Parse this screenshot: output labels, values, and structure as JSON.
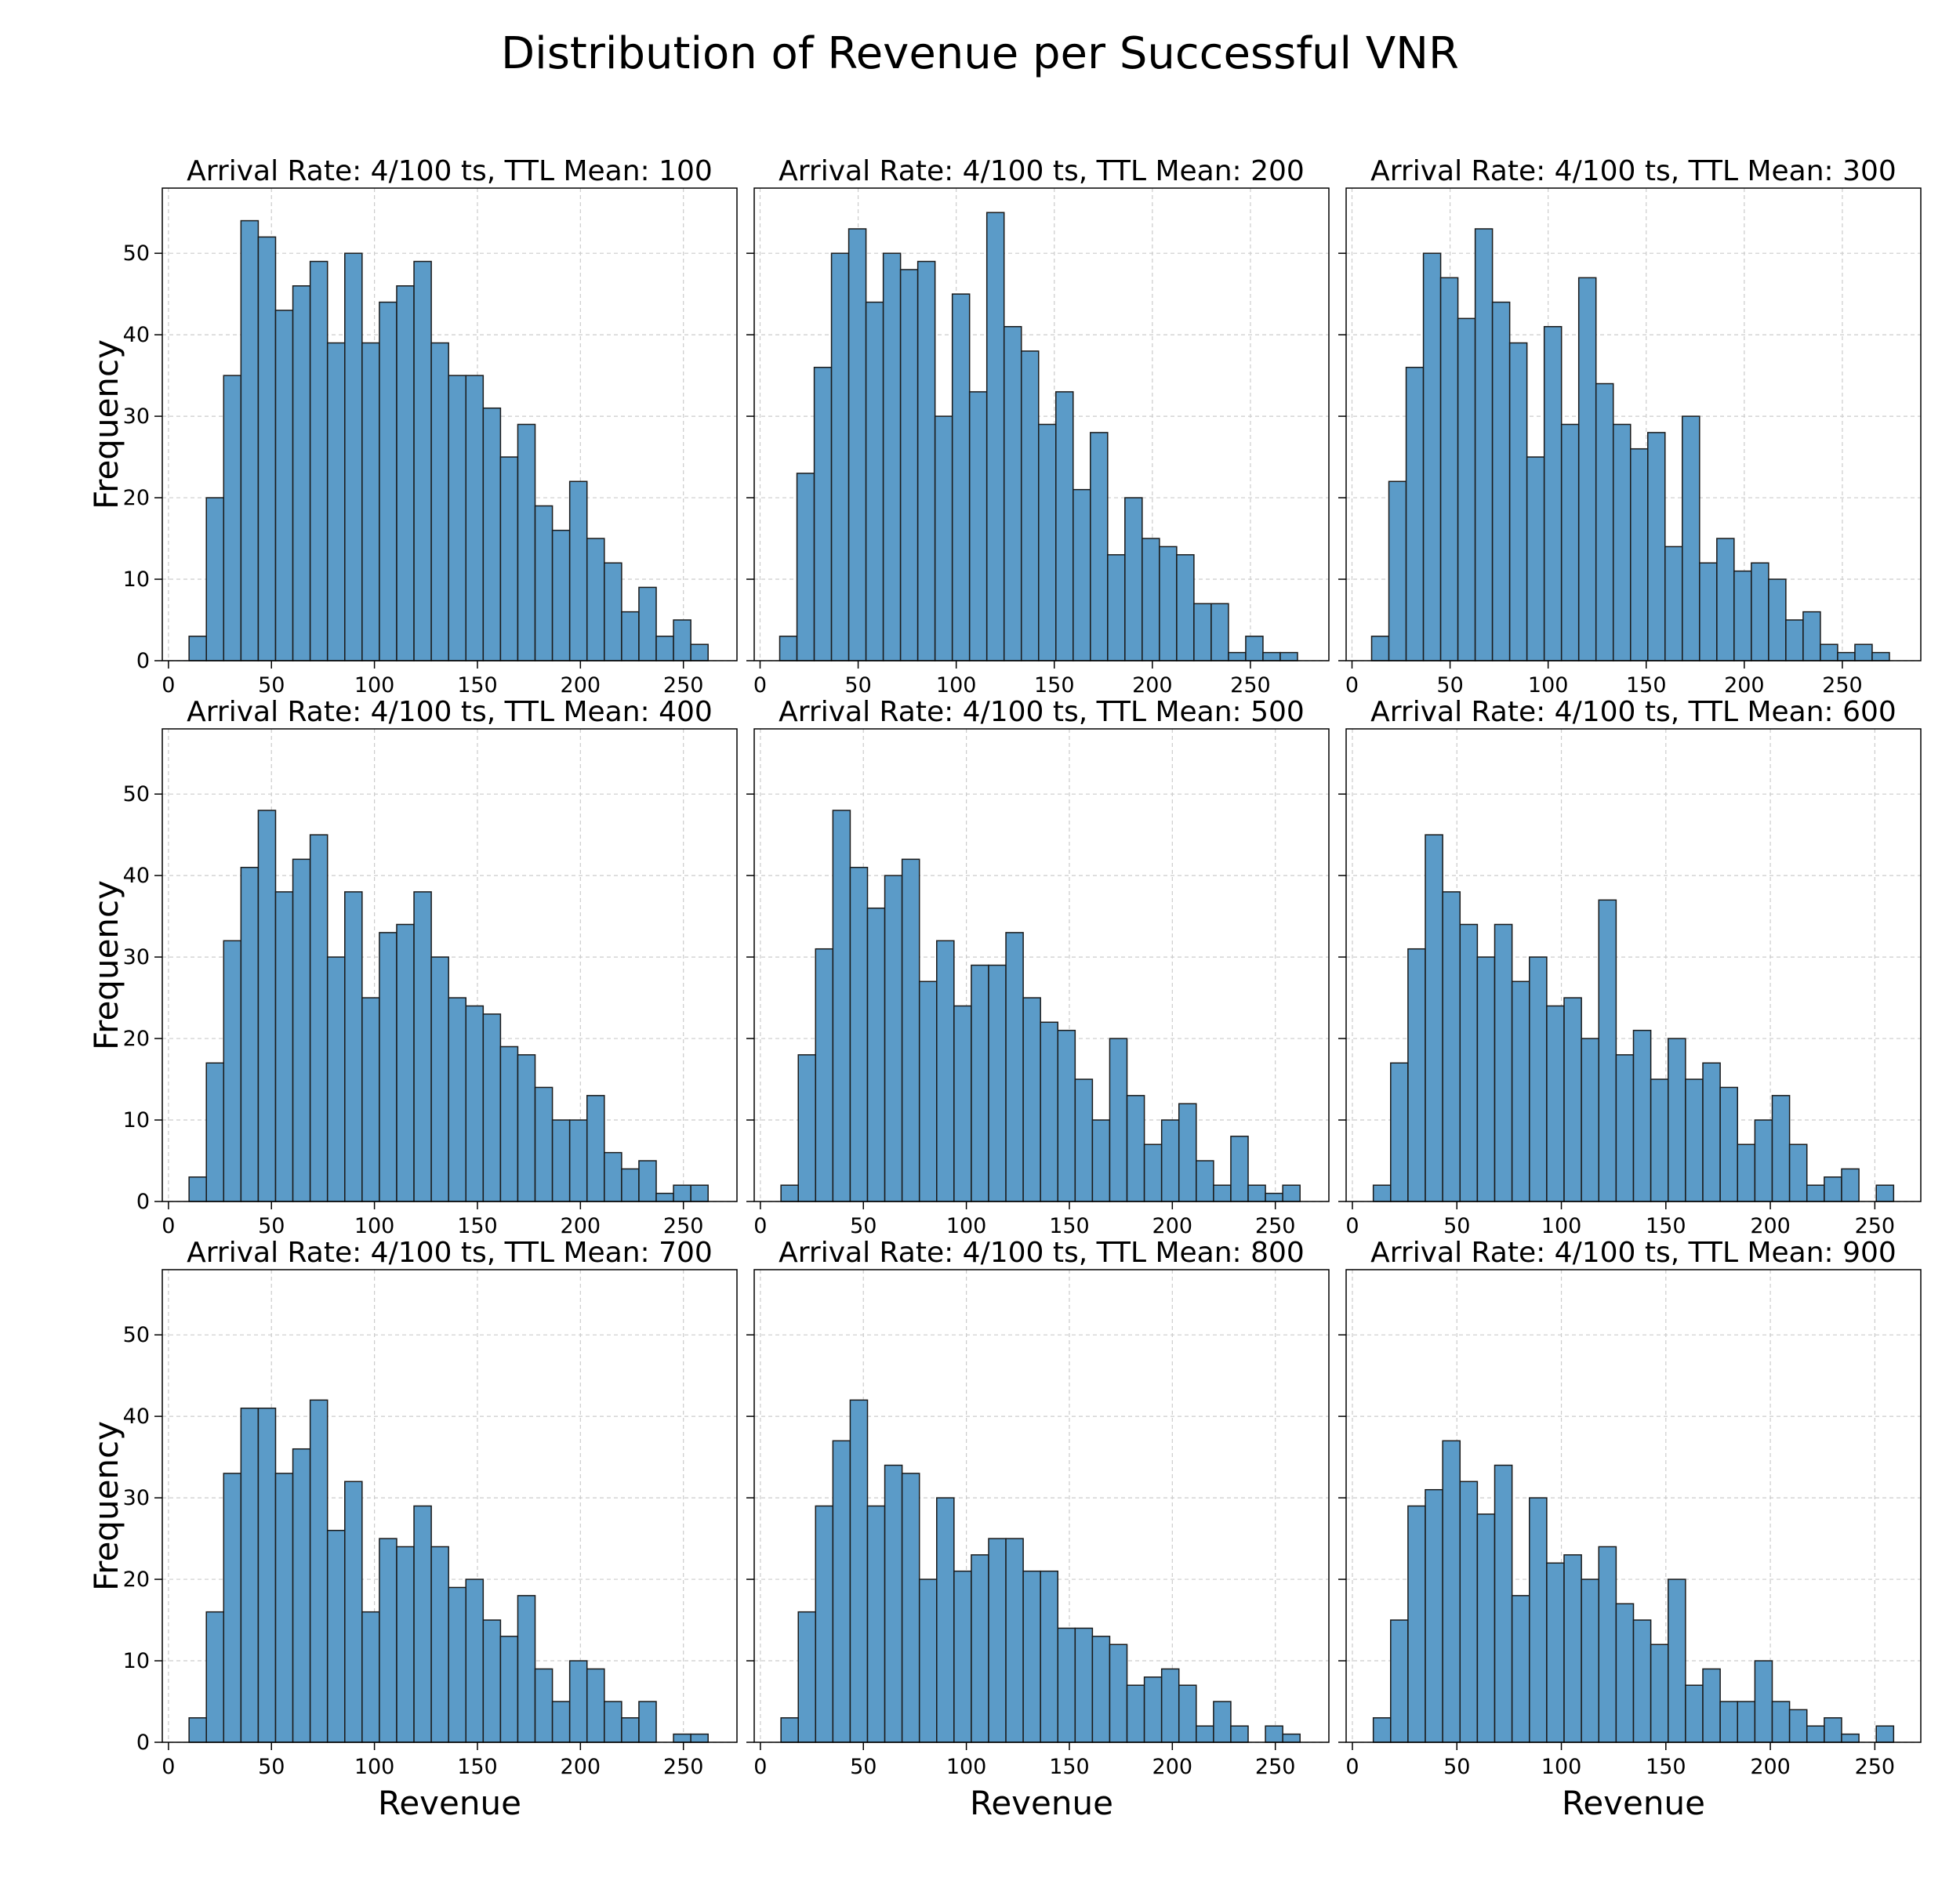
{
  "figure": {
    "title": "Distribution of Revenue per Successful VNR"
  },
  "chart_data": {
    "type": "bar",
    "subtype": "histogram",
    "title": "Distribution of Revenue per Successful VNR",
    "xlabel": "Revenue",
    "ylabel": "Frequency",
    "ylim": [
      0,
      58
    ],
    "yticks": [
      0,
      10,
      20,
      30,
      40,
      50
    ],
    "grid": true,
    "bar_color": "#5b9bc8",
    "edge_color": "#1a1a1a",
    "panels": [
      {
        "title": "Arrival Rate: 4/100 ts, TTL Mean: 100",
        "xlim": [
          -3,
          276
        ],
        "bin_start": 10,
        "bin_width": 8.4,
        "counts": [
          3,
          20,
          35,
          54,
          52,
          43,
          46,
          49,
          39,
          50,
          39,
          44,
          46,
          49,
          39,
          35,
          35,
          31,
          25,
          29,
          19,
          16,
          22,
          15,
          12,
          6,
          9,
          3,
          5,
          2
        ]
      },
      {
        "title": "Arrival Rate: 4/100 ts, TTL Mean: 200",
        "xlim": [
          -3,
          290
        ],
        "bin_start": 10,
        "bin_width": 8.8,
        "counts": [
          3,
          23,
          36,
          50,
          53,
          44,
          50,
          48,
          49,
          30,
          45,
          33,
          55,
          41,
          38,
          29,
          33,
          21,
          28,
          13,
          20,
          15,
          14,
          13,
          7,
          7,
          1,
          3,
          1,
          1
        ]
      },
      {
        "title": "Arrival Rate: 4/100 ts, TTL Mean: 300",
        "xlim": [
          -3,
          290
        ],
        "bin_start": 10,
        "bin_width": 8.8,
        "counts": [
          3,
          22,
          36,
          50,
          47,
          42,
          53,
          44,
          39,
          25,
          41,
          29,
          47,
          34,
          29,
          26,
          28,
          14,
          30,
          12,
          15,
          11,
          12,
          10,
          5,
          6,
          2,
          1,
          2,
          1
        ]
      },
      {
        "title": "Arrival Rate: 4/100 ts, TTL Mean: 400",
        "xlim": [
          -3,
          276
        ],
        "bin_start": 10,
        "bin_width": 8.4,
        "counts": [
          3,
          17,
          32,
          41,
          48,
          38,
          42,
          45,
          30,
          38,
          25,
          33,
          34,
          38,
          30,
          25,
          24,
          23,
          19,
          18,
          14,
          10,
          10,
          13,
          6,
          4,
          5,
          1,
          2,
          2
        ]
      },
      {
        "title": "Arrival Rate: 4/100 ts, TTL Mean: 500",
        "xlim": [
          -3,
          276
        ],
        "bin_start": 10,
        "bin_width": 8.4,
        "counts": [
          2,
          18,
          31,
          48,
          41,
          36,
          40,
          42,
          27,
          32,
          24,
          29,
          29,
          33,
          25,
          22,
          21,
          15,
          10,
          20,
          13,
          7,
          10,
          12,
          5,
          2,
          8,
          2,
          1,
          2
        ]
      },
      {
        "title": "Arrival Rate: 4/100 ts, TTL Mean: 600",
        "xlim": [
          -3,
          272
        ],
        "bin_start": 10,
        "bin_width": 8.3,
        "counts": [
          2,
          17,
          31,
          45,
          38,
          34,
          30,
          34,
          27,
          30,
          24,
          25,
          20,
          37,
          18,
          21,
          15,
          20,
          15,
          17,
          14,
          7,
          10,
          13,
          7,
          2,
          3,
          4,
          0,
          2
        ]
      },
      {
        "title": "Arrival Rate: 4/100 ts, TTL Mean: 700",
        "xlim": [
          -3,
          276
        ],
        "bin_start": 10,
        "bin_width": 8.4,
        "counts": [
          3,
          16,
          33,
          41,
          41,
          33,
          36,
          42,
          26,
          32,
          16,
          25,
          24,
          29,
          24,
          19,
          20,
          15,
          13,
          18,
          9,
          5,
          10,
          9,
          5,
          3,
          5,
          0,
          1,
          1
        ]
      },
      {
        "title": "Arrival Rate: 4/100 ts, TTL Mean: 800",
        "xlim": [
          -3,
          276
        ],
        "bin_start": 10,
        "bin_width": 8.4,
        "counts": [
          3,
          16,
          29,
          37,
          42,
          29,
          34,
          33,
          20,
          30,
          21,
          23,
          25,
          25,
          21,
          21,
          14,
          14,
          13,
          12,
          7,
          8,
          9,
          7,
          2,
          5,
          2,
          0,
          2,
          1
        ]
      },
      {
        "title": "Arrival Rate: 4/100 ts, TTL Mean: 900",
        "xlim": [
          -3,
          272
        ],
        "bin_start": 10,
        "bin_width": 8.3,
        "counts": [
          3,
          15,
          29,
          31,
          37,
          32,
          28,
          34,
          18,
          30,
          22,
          23,
          20,
          24,
          17,
          15,
          12,
          20,
          7,
          9,
          5,
          5,
          10,
          5,
          4,
          2,
          3,
          1,
          0,
          2
        ]
      }
    ]
  }
}
